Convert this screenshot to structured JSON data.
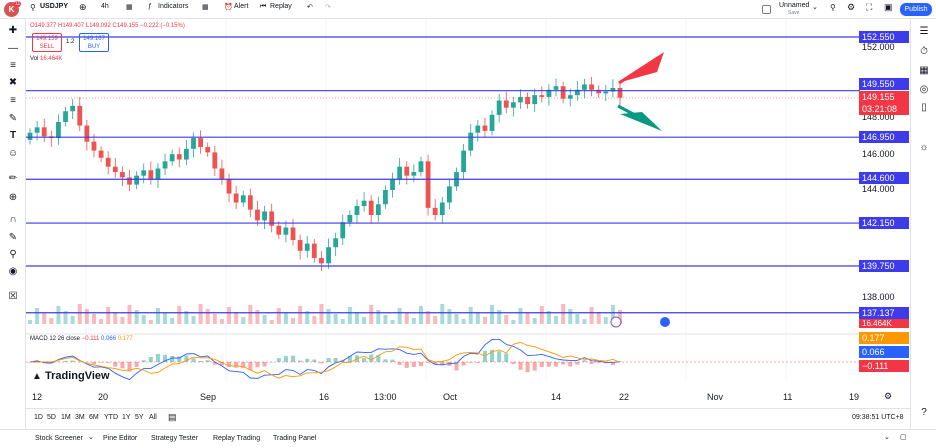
{
  "header": {
    "avatar_letter": "K",
    "avatar_badge": "11",
    "symbol": "USDJPY",
    "interval": "4h",
    "indicators_label": "Indicators",
    "alert_label": "Alert",
    "replay_label": "Replay",
    "layout_name": "Unnamed",
    "layout_status": "Save",
    "publish_label": "Publish"
  },
  "legend": {
    "ohlc_o": "O149.377",
    "ohlc_h": "H149.407",
    "ohlc_l": "L149.092",
    "ohlc_c": "C149.155",
    "change": "−0.222 (−0.15%)",
    "sell_price": "149.159",
    "sell_label": "SELL",
    "spread": "1.2",
    "buy_price": "149.167",
    "buy_label": "BUY",
    "vol_label": "Vol",
    "vol_value": "16.464K",
    "macd_label": "MACD 12 26 close",
    "macd_v1": "−0.111",
    "macd_v2": "0.066",
    "macd_v3": "0.177"
  },
  "price_axis": {
    "levels": [
      "152.550",
      "149.550",
      "146.950",
      "144.600",
      "142.150",
      "139.750",
      "137.137"
    ],
    "ticks": [
      "152.000",
      "148.000",
      "146.000",
      "144.000",
      "138.000"
    ],
    "current_price": "149.155",
    "countdown": "03:21:08",
    "volume_tag": "16.464K",
    "macd_tags": [
      "0.177",
      "0.066",
      "−0.111"
    ]
  },
  "time_axis": [
    "12",
    "20",
    "Sep",
    "16",
    "13:00",
    "Oct",
    "14",
    "22",
    "Nov",
    "11",
    "19"
  ],
  "watermark": "TradingView",
  "range_buttons": [
    "1D",
    "5D",
    "1M",
    "3M",
    "6M",
    "YTD",
    "1Y",
    "5Y",
    "All"
  ],
  "clock": "09:38:51 UTC+8",
  "bottom_tabs": [
    "Stock Screener",
    "Pine Editor",
    "Strategy Tester",
    "Replay Trading",
    "Trading Panel"
  ],
  "colors": {
    "up": "#26a69a",
    "down": "#ef5350",
    "level_line": "#3d3bea",
    "accent": "#2962ff",
    "arrow_up": "#f23645",
    "arrow_down": "#089981"
  },
  "chart_data": {
    "type": "candlestick",
    "horizontal_levels": [
      152.55,
      149.55,
      146.95,
      144.6,
      142.15,
      139.75,
      137.137
    ],
    "current_price": 149.155,
    "ylim": [
      136.5,
      153.5
    ],
    "close_series": [
      147.2,
      147.5,
      147.0,
      146.9,
      147.8,
      148.4,
      148.7,
      147.6,
      146.7,
      146.2,
      145.8,
      145.3,
      145.0,
      144.7,
      144.3,
      144.8,
      145.1,
      144.6,
      145.2,
      145.6,
      146.0,
      145.7,
      146.3,
      146.9,
      146.4,
      146.1,
      145.2,
      144.6,
      143.8,
      143.3,
      143.7,
      142.9,
      142.3,
      142.8,
      142.0,
      141.5,
      141.9,
      141.2,
      140.6,
      141.0,
      140.2,
      139.9,
      140.8,
      141.3,
      142.2,
      142.6,
      143.1,
      143.4,
      142.6,
      143.2,
      144.0,
      144.6,
      145.3,
      144.8,
      145.0,
      145.6,
      143.0,
      142.6,
      143.3,
      144.2,
      145.0,
      146.2,
      147.2,
      147.6,
      147.3,
      148.2,
      149.0,
      148.6,
      148.9,
      149.2,
      148.8,
      149.3,
      149.2,
      149.6,
      149.8,
      149.1,
      149.3,
      149.6,
      149.9,
      149.6,
      149.4,
      149.5,
      149.7,
      149.155
    ]
  }
}
